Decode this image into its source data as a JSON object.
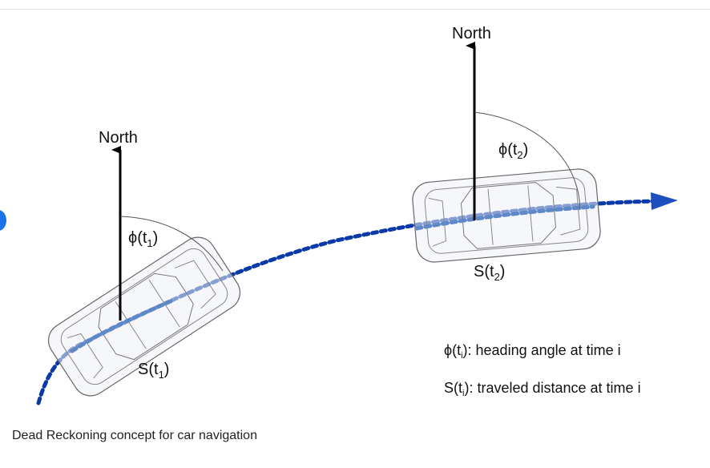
{
  "caption": "Dead Reckoning concept for car navigation",
  "diagram": {
    "north_label_1": "North",
    "north_label_2": "North",
    "heading_label_1": "ϕ(t",
    "heading_sub_1": "1",
    "heading_label_2": "ϕ(t",
    "heading_sub_2": "2",
    "distance_label_1": "S(t",
    "distance_sub_1": "1",
    "distance_label_2": "S(t",
    "distance_sub_2": "2",
    "close_paren": ")",
    "legend_heading_pre": "ϕ(t",
    "legend_heading_sub": "i",
    "legend_heading_text": "): heading angle at time i",
    "legend_distance_pre": "S(t",
    "legend_distance_sub": "i",
    "legend_distance_text": "): traveled distance at time i"
  },
  "colors": {
    "path_dark": "#0a3aa8",
    "path_light": "#5e88c8",
    "arrow": "#1f4fbf",
    "car_outline": "#666666"
  }
}
